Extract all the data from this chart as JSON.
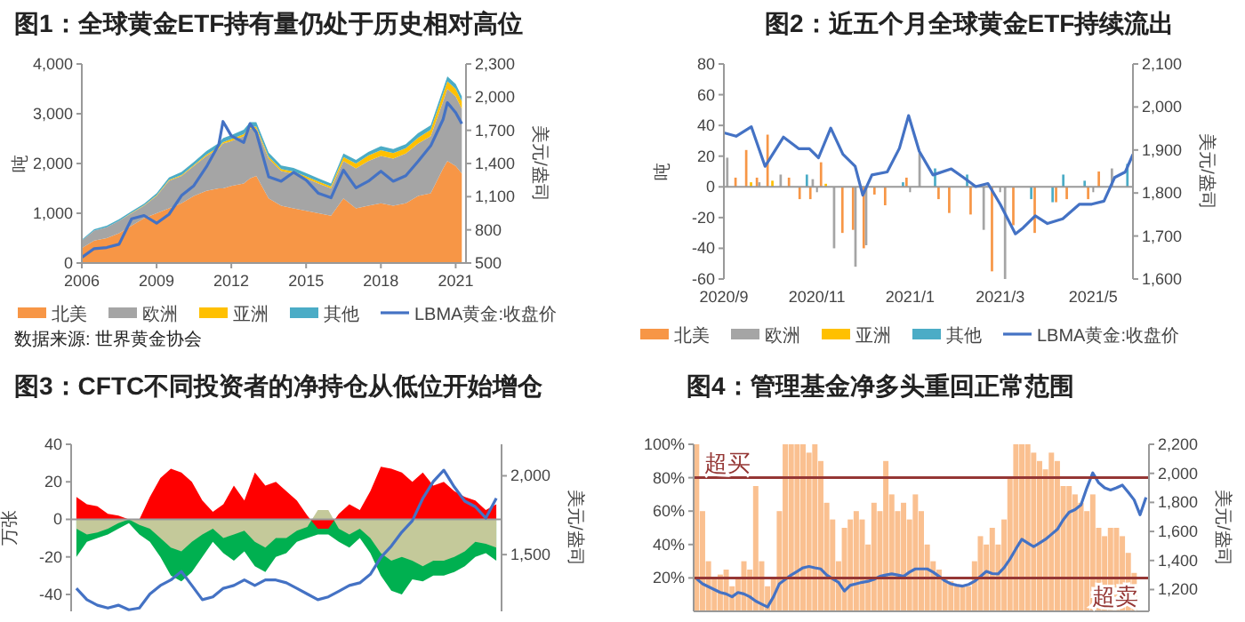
{
  "chart_data": [
    {
      "type": "area",
      "title": "图1：全球黄金ETF持有量仍处于历史相对高位",
      "stacked": true,
      "legend": "bottom",
      "ylabel": "吨",
      "y2label": "美元/盎司",
      "x": [
        "2006-01",
        "2006-07",
        "2007-01",
        "2007-07",
        "2008-01",
        "2008-07",
        "2009-01",
        "2009-07",
        "2010-01",
        "2010-07",
        "2011-01",
        "2011-07",
        "2011-09",
        "2012-01",
        "2012-07",
        "2012-10",
        "2013-01",
        "2013-07",
        "2014-01",
        "2014-07",
        "2015-01",
        "2015-07",
        "2016-01",
        "2016-07",
        "2017-01",
        "2017-07",
        "2018-01",
        "2018-07",
        "2019-01",
        "2019-07",
        "2020-01",
        "2020-07",
        "2020-09",
        "2021-01",
        "2021-04"
      ],
      "xlim": [
        "2006-01",
        "2021-06"
      ],
      "xticks": [
        "2006",
        "2009",
        "2012",
        "2015",
        "2018",
        "2021"
      ],
      "ylim": [
        0,
        4000
      ],
      "yticks": [
        0,
        {
          "value": 1000,
          "label": "1,000"
        },
        {
          "value": 2000,
          "label": "2,000"
        },
        {
          "value": 3000,
          "label": "3,000"
        },
        {
          "value": 4000,
          "label": "4,000"
        }
      ],
      "y2lim": [
        500,
        2300
      ],
      "y2ticks": [
        500,
        800,
        {
          "value": 1100,
          "label": "1,100"
        },
        {
          "value": 1400,
          "label": "1,400"
        },
        {
          "value": 1700,
          "label": "1,700"
        },
        {
          "value": 2000,
          "label": "2,000"
        },
        {
          "value": 2300,
          "label": "2,300"
        }
      ],
      "series": [
        {
          "name": "北美",
          "color": "#f79646",
          "values": [
            300,
            450,
            500,
            600,
            750,
            900,
            1000,
            1100,
            1200,
            1350,
            1450,
            1500,
            1500,
            1550,
            1600,
            1700,
            1750,
            1300,
            1150,
            1100,
            1050,
            1000,
            950,
            1300,
            1100,
            1150,
            1200,
            1150,
            1200,
            1350,
            1400,
            1900,
            2050,
            1950,
            1800
          ]
        },
        {
          "name": "欧洲",
          "color": "#a5a5a5",
          "values": [
            150,
            200,
            220,
            250,
            250,
            250,
            350,
            550,
            550,
            600,
            700,
            800,
            900,
            900,
            950,
            1000,
            950,
            800,
            700,
            700,
            650,
            600,
            550,
            750,
            800,
            900,
            950,
            950,
            1000,
            1050,
            1150,
            1350,
            1450,
            1400,
            1300
          ]
        },
        {
          "name": "亚洲",
          "color": "#ffc000",
          "values": [
            0,
            0,
            0,
            0,
            10,
            10,
            10,
            20,
            20,
            20,
            30,
            30,
            30,
            40,
            40,
            40,
            40,
            40,
            40,
            40,
            40,
            40,
            40,
            80,
            100,
            110,
            120,
            110,
            110,
            120,
            130,
            150,
            150,
            150,
            150
          ]
        },
        {
          "name": "其他",
          "color": "#4bacc6",
          "values": [
            20,
            30,
            30,
            30,
            30,
            30,
            40,
            50,
            60,
            60,
            70,
            80,
            80,
            80,
            90,
            90,
            90,
            80,
            70,
            70,
            70,
            60,
            60,
            70,
            70,
            70,
            80,
            80,
            80,
            90,
            90,
            100,
            100,
            100,
            100
          ]
        },
        {
          "name": "LBMA黄金:收盘价",
          "type": "line",
          "axis": "y2",
          "color": "#4472c4",
          "values": [
            550,
            630,
            640,
            670,
            900,
            930,
            860,
            940,
            1110,
            1200,
            1370,
            1570,
            1780,
            1650,
            1590,
            1760,
            1680,
            1280,
            1240,
            1320,
            1250,
            1130,
            1090,
            1340,
            1180,
            1240,
            1330,
            1240,
            1290,
            1420,
            1560,
            1800,
            1950,
            1860,
            1760
          ]
        }
      ],
      "annotations": [
        "数据来源: 世界黄金协会"
      ]
    },
    {
      "type": "bar",
      "title": "图2：近五个月全球黄金ETF持续流出",
      "legend": "bottom",
      "ylabel": "吨",
      "y2label": "美元/盎司",
      "x": [
        "2020-09-04",
        "2020-09-11",
        "2020-09-18",
        "2020-09-25",
        "2020-10-02",
        "2020-10-09",
        "2020-10-16",
        "2020-10-23",
        "2020-10-30",
        "2020-11-06",
        "2020-11-13",
        "2020-11-20",
        "2020-11-27",
        "2020-12-04",
        "2020-12-11",
        "2020-12-18",
        "2020-12-25",
        "2021-01-01",
        "2021-01-08",
        "2021-01-15",
        "2021-01-22",
        "2021-01-29",
        "2021-02-05",
        "2021-02-12",
        "2021-02-19",
        "2021-02-26",
        "2021-03-05",
        "2021-03-12",
        "2021-03-19",
        "2021-03-26",
        "2021-04-02",
        "2021-04-09",
        "2021-04-16",
        "2021-04-23",
        "2021-04-30",
        "2021-05-07",
        "2021-05-14",
        "2021-05-21"
      ],
      "xlim": [
        "2020-09-01",
        "2021-05-27"
      ],
      "xticks": [
        {
          "value": "2020-09",
          "label": "2020/9"
        },
        {
          "value": "2020-11",
          "label": "2020/11"
        },
        {
          "value": "2021-01",
          "label": "2021/1"
        },
        {
          "value": "2021-03",
          "label": "2021/3"
        },
        {
          "value": "2021-05",
          "label": "2021/5"
        }
      ],
      "ylim": [
        -60,
        80
      ],
      "yticks": [
        -60,
        -40,
        -20,
        0,
        20,
        40,
        60,
        80
      ],
      "y2lim": [
        1600,
        2100
      ],
      "y2ticks": [
        {
          "value": 1600,
          "label": "1,600"
        },
        {
          "value": 1700,
          "label": "1,700"
        },
        {
          "value": 1800,
          "label": "1,800"
        },
        {
          "value": 1900,
          "label": "1,900"
        },
        {
          "value": 2000,
          "label": "2,000"
        },
        {
          "value": 2100,
          "label": "2,100"
        }
      ],
      "series": [
        {
          "name": "北美",
          "color": "#f79646",
          "values": [
            0,
            6,
            24,
            6,
            34,
            0,
            6,
            -8,
            -8,
            16,
            0,
            -30,
            -28,
            -40,
            -5,
            -12,
            0,
            6,
            0,
            0,
            -8,
            -17,
            0,
            -18,
            0,
            -55,
            0,
            -25,
            0,
            -30,
            0,
            -10,
            -8,
            0,
            -8,
            10,
            0,
            0
          ]
        },
        {
          "name": "欧洲",
          "color": "#a5a5a5",
          "values": [
            19,
            0,
            0,
            3,
            0,
            8,
            0,
            0,
            5,
            0,
            -40,
            0,
            -52,
            -38,
            0,
            0,
            0,
            null,
            22,
            0,
            0,
            0,
            0,
            0,
            -28,
            0,
            -60,
            0,
            0,
            0,
            0,
            0,
            0,
            0,
            0,
            0,
            12,
            0
          ]
        },
        {
          "name": "亚洲",
          "color": "#ffc000",
          "values": [
            0,
            0,
            3,
            0,
            4,
            0,
            0,
            0,
            0,
            2,
            0,
            0,
            0,
            0,
            0,
            0,
            0,
            0,
            0,
            0,
            0,
            0,
            0,
            0,
            0,
            0,
            0,
            0,
            0,
            0,
            0,
            0,
            0,
            0,
            0,
            0,
            0,
            0
          ]
        },
        {
          "name": "其他",
          "color": "#4bacc6",
          "values": [
            0,
            0,
            0,
            0,
            0,
            0,
            0,
            8,
            0,
            0,
            0,
            0,
            0,
            0,
            0,
            0,
            3,
            0,
            0,
            12,
            0,
            0,
            8,
            0,
            0,
            0,
            0,
            0,
            -8,
            0,
            -10,
            8,
            0,
            4,
            0,
            0,
            0,
            15
          ]
        },
        {
          "name": "LBMA黄金:收盘价",
          "type": "line",
          "axis": "y2",
          "color": "#4472c4",
          "x": [
            "2020-09-01",
            "2020-09-09",
            "2020-09-19",
            "2020-09-28",
            "2020-10-10",
            "2020-10-20",
            "2020-10-27",
            "2020-11-02",
            "2020-11-10",
            "2020-11-18",
            "2020-11-26",
            "2020-12-01",
            "2020-12-07",
            "2020-12-17",
            "2020-12-25",
            "2020-12-31",
            "2021-01-07",
            "2021-01-16",
            "2021-01-28",
            "2021-02-05",
            "2021-02-13",
            "2021-02-21",
            "2021-03-01",
            "2021-03-11",
            "2021-03-16",
            "2021-03-24",
            "2021-04-01",
            "2021-04-11",
            "2021-04-22",
            "2021-04-30",
            "2021-05-08",
            "2021-05-15",
            "2021-05-22",
            "2021-05-27"
          ],
          "values": [
            1940,
            1932,
            1954,
            1862,
            1930,
            1903,
            1903,
            1882,
            1951,
            1890,
            1862,
            1795,
            1842,
            1849,
            1904,
            1980,
            1897,
            1842,
            1856,
            1836,
            1815,
            1822,
            1774,
            1705,
            1719,
            1747,
            1729,
            1740,
            1774,
            1774,
            1781,
            1836,
            1849,
            1890
          ]
        }
      ]
    },
    {
      "type": "area",
      "title": "图3：CFTC不同投资者的净持仓从低位开始增仓",
      "ylabel": "万张",
      "y2label": "美元/盎司",
      "categories": [
        null,
        null,
        null,
        null,
        null,
        null,
        null,
        null,
        null,
        null,
        null,
        null,
        null,
        null,
        null,
        null,
        null,
        null,
        null,
        null,
        null,
        null,
        null,
        null,
        null,
        null,
        null,
        null,
        null,
        null,
        null,
        null,
        null,
        null,
        null,
        null,
        null,
        null,
        null,
        null,
        null
      ],
      "ylim": [
        -49,
        40
      ],
      "yticks": [
        -40,
        -20,
        0,
        20,
        40
      ],
      "y2lim": [
        1140,
        2200
      ],
      "y2ticks": [
        {
          "value": 1500,
          "label": "1,500"
        },
        {
          "value": 2000,
          "label": "2,000"
        }
      ],
      "series": [
        {
          "color": "#00b050",
          "values": [
            -20,
            -12,
            -10,
            -8,
            -5,
            -2,
            -8,
            -12,
            -20,
            -30,
            -33,
            -28,
            -20,
            -12,
            -18,
            -22,
            -17,
            -25,
            -28,
            -20,
            -18,
            -12,
            -10,
            -8,
            -8,
            -12,
            -15,
            -10,
            -18,
            -30,
            -38,
            -40,
            -32,
            -33,
            -30,
            -30,
            -28,
            -25,
            -20,
            -18,
            -22
          ]
        },
        {
          "color": "#c4c99a",
          "values": [
            -5,
            -8,
            -7,
            -5,
            -2,
            0,
            -3,
            -5,
            -10,
            -15,
            -17,
            -12,
            -8,
            -5,
            -10,
            -8,
            -6,
            -12,
            -15,
            -10,
            -10,
            -6,
            -4,
            5,
            5,
            -5,
            -8,
            -5,
            -10,
            -18,
            -22,
            -20,
            -22,
            -25,
            -22,
            -22,
            -20,
            -17,
            -12,
            -13,
            -15
          ]
        },
        {
          "color": "#ff0000",
          "values": [
            12,
            8,
            7,
            3,
            2,
            0,
            0,
            12,
            22,
            27,
            25,
            20,
            10,
            4,
            8,
            18,
            10,
            25,
            18,
            20,
            15,
            10,
            2,
            -5,
            -5,
            3,
            8,
            5,
            15,
            28,
            27,
            25,
            20,
            25,
            18,
            20,
            15,
            12,
            10,
            5,
            8
          ]
        },
        {
          "type": "line",
          "axis": "y2",
          "color": "#4472c4",
          "values": [
            1286,
            1214,
            1179,
            1161,
            1179,
            1150,
            1161,
            1250,
            1304,
            1339,
            1393,
            1304,
            1214,
            1232,
            1286,
            1304,
            1339,
            1304,
            1339,
            1339,
            1321,
            1286,
            1250,
            1214,
            1232,
            1268,
            1304,
            1321,
            1375,
            1482,
            1554,
            1643,
            1714,
            1857,
            1964,
            2036,
            1929,
            1839,
            1804,
            1732,
            1857
          ]
        }
      ]
    },
    {
      "type": "bar",
      "title": "图4：管理基金净多头重回正常范围",
      "y2label": "美元/盎司",
      "categories": [
        null,
        null,
        null,
        null,
        null,
        null,
        null,
        null,
        null,
        null,
        null,
        null,
        null,
        null,
        null,
        null,
        null,
        null,
        null,
        null,
        null,
        null,
        null,
        null,
        null,
        null,
        null,
        null,
        null,
        null,
        null,
        null,
        null,
        null,
        null,
        null,
        null,
        null,
        null,
        null,
        null,
        null,
        null,
        null,
        null,
        null,
        null,
        null,
        null,
        null,
        null,
        null,
        null,
        null,
        null,
        null,
        null,
        null,
        null,
        null,
        null,
        null,
        null,
        null,
        null,
        null,
        null,
        null,
        null,
        null,
        null,
        null,
        null,
        null,
        null,
        null,
        null
      ],
      "ylim": [
        0,
        100
      ],
      "yticks": [
        {
          "value": 20,
          "label": "20%"
        },
        {
          "value": 40,
          "label": "40%"
        },
        {
          "value": 60,
          "label": "60%"
        },
        {
          "value": 80,
          "label": "80%"
        },
        {
          "value": 100,
          "label": "100%"
        }
      ],
      "y2lim": [
        1050,
        2200
      ],
      "y2ticks": [
        {
          "value": 1200,
          "label": "1,200"
        },
        {
          "value": 1400,
          "label": "1,400"
        },
        {
          "value": 1600,
          "label": "1,600"
        },
        {
          "value": 1800,
          "label": "1,800"
        },
        {
          "value": 2000,
          "label": "2,000"
        },
        {
          "value": 2200,
          "label": "2,200"
        }
      ],
      "ref_lines": [
        {
          "axis": "y",
          "value": 80,
          "label": "超买",
          "color": "#953735"
        },
        {
          "axis": "y",
          "value": 20,
          "label": "超卖",
          "color": "#953735"
        }
      ],
      "series": [
        {
          "color": "#fac090",
          "values": [
            100,
            60,
            30,
            20,
            22,
            25,
            15,
            20,
            30,
            25,
            75,
            30,
            15,
            20,
            60,
            100,
            100,
            100,
            100,
            95,
            100,
            90,
            65,
            55,
            30,
            50,
            55,
            60,
            55,
            40,
            65,
            60,
            90,
            70,
            60,
            65,
            55,
            70,
            60,
            40,
            30,
            25,
            20,
            18,
            15,
            15,
            15,
            30,
            45,
            40,
            50,
            40,
            55,
            80,
            100,
            100,
            100,
            95,
            90,
            85,
            95,
            90,
            75,
            75,
            70,
            65,
            60,
            70,
            50,
            45,
            50,
            50,
            45,
            35,
            23,
            null,
            null
          ]
        },
        {
          "type": "line",
          "axis": "y2",
          "color": "#4472c4",
          "values": [
            1274,
            1240,
            1220,
            1200,
            1180,
            1170,
            1150,
            1180,
            1170,
            1150,
            1120,
            1100,
            1080,
            1150,
            1240,
            1270,
            1300,
            1325,
            1350,
            1359,
            1350,
            1342,
            1300,
            1274,
            1250,
            1190,
            1230,
            1240,
            1250,
            1257,
            1270,
            1291,
            1300,
            1308,
            1300,
            1291,
            1320,
            1342,
            1342,
            1342,
            1320,
            1291,
            1260,
            1240,
            1230,
            1224,
            1235,
            1257,
            1290,
            1325,
            1310,
            1308,
            1350,
            1410,
            1480,
            1546,
            1520,
            1495,
            1520,
            1546,
            1580,
            1614,
            1680,
            1732,
            1750,
            1783,
            1900,
            2003,
            1935,
            1900,
            1885,
            1900,
            1919,
            1870,
            1817,
            1715,
            1834
          ]
        }
      ]
    }
  ]
}
